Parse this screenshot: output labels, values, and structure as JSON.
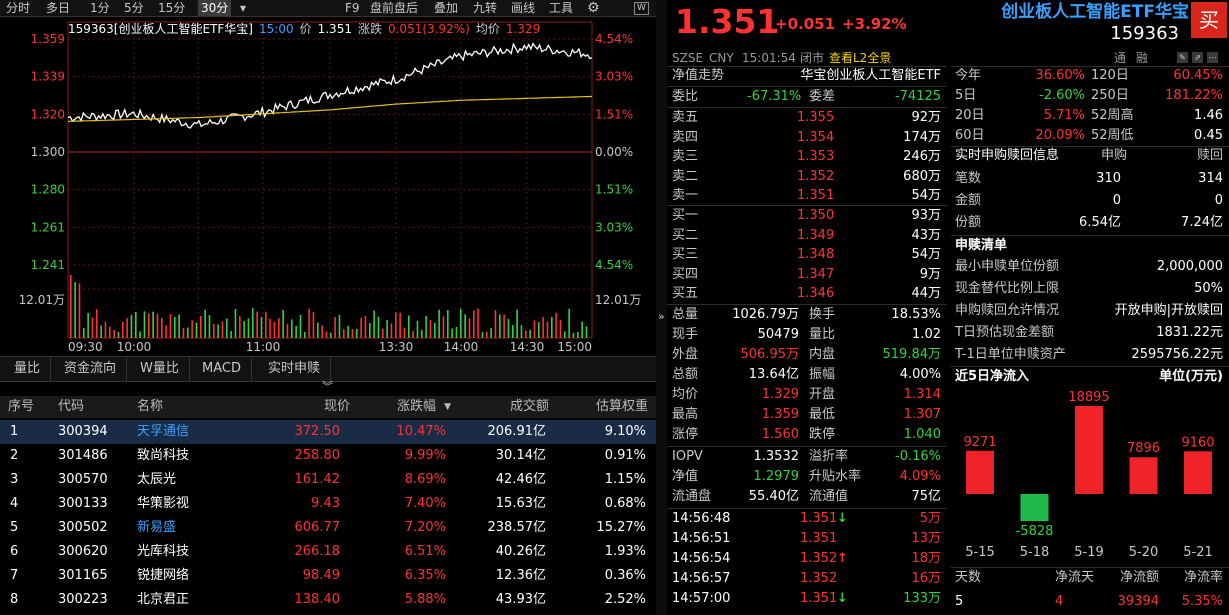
{
  "toolbar": {
    "items": [
      "分时",
      "多日",
      "1分",
      "5分",
      "15分",
      "30分",
      "▾",
      "F9",
      "盘前盘后",
      "叠加",
      "九转",
      "画线",
      "工具"
    ],
    "gear": "⚙",
    "badge": "W"
  },
  "chart": {
    "title": "159363[创业板人工智能ETF华宝]",
    "time": "15:00",
    "price_label": "价",
    "price": "1.351",
    "chg_label": "涨跌",
    "chg": "0.051(3.92%)",
    "avg_label": "均价",
    "avg": "1.329",
    "left_axis": [
      "1.359",
      "1.339",
      "1.320",
      "1.300",
      "1.280",
      "1.261",
      "1.241"
    ],
    "right_axis": [
      "4.54%",
      "3.03%",
      "1.51%",
      "0.00%",
      "1.51%",
      "3.03%",
      "4.54%"
    ],
    "vol_label": "12.01万",
    "vol_label_r": "12.01万",
    "x_labels": [
      "09:30",
      "10:00",
      "11:00",
      "13:30",
      "14:00",
      "14:30",
      "15:00"
    ],
    "chart_data": {
      "type": "line",
      "x": [
        "09:30",
        "10:00",
        "10:30",
        "11:00",
        "11:30",
        "13:30",
        "14:00",
        "14:30",
        "15:00"
      ],
      "series": [
        {
          "values": [
            1.318,
            1.32,
            1.314,
            1.321,
            1.33,
            1.338,
            1.35,
            1.355,
            1.351
          ]
        },
        {
          "values": [
            1.316,
            1.317,
            1.318,
            1.32,
            1.322,
            1.325,
            1.327,
            1.328,
            1.329
          ]
        }
      ],
      "ylim": [
        1.241,
        1.359
      ]
    }
  },
  "ind": [
    "量比",
    "资金流向",
    "W量比",
    "MACD",
    "实时申赎"
  ],
  "ind_arrow": "︾",
  "table": {
    "headers": [
      "序号",
      "代码",
      "名称",
      "现价",
      "涨跌幅",
      "成交额",
      "估算权重"
    ],
    "sort_arrow": "▼",
    "rows": [
      [
        "1",
        "300394",
        "天孚通信",
        "372.50",
        "10.47%",
        "206.91亿",
        "9.10%"
      ],
      [
        "2",
        "301486",
        "致尚科技",
        "258.80",
        "9.99%",
        "30.14亿",
        "0.91%"
      ],
      [
        "3",
        "300570",
        "太辰光",
        "161.42",
        "8.69%",
        "42.46亿",
        "1.15%"
      ],
      [
        "4",
        "300133",
        "华策影视",
        "9.43",
        "7.40%",
        "15.63亿",
        "0.68%"
      ],
      [
        "5",
        "300502",
        "新易盛",
        "606.77",
        "7.20%",
        "238.57亿",
        "15.27%"
      ],
      [
        "6",
        "300620",
        "光库科技",
        "266.18",
        "6.51%",
        "40.26亿",
        "1.93%"
      ],
      [
        "7",
        "301165",
        "锐捷网络",
        "98.49",
        "6.35%",
        "12.36亿",
        "0.36%"
      ],
      [
        "8",
        "300223",
        "北京君正",
        "138.40",
        "5.88%",
        "43.93亿",
        "2.52%"
      ]
    ]
  },
  "quote": {
    "price": "1.351",
    "chg": "+0.051",
    "pct": "+3.92%",
    "name": "创业板人工智能ETF华宝",
    "code": "159363",
    "buy": "买",
    "exchange": "SZSE",
    "currency": "CNY",
    "time": "15:01:54",
    "status": "闭市",
    "l2": "查看L2全景",
    "tong": "通",
    "rong": "融"
  },
  "nav": {
    "label": "净值走势",
    "name": "华宝创业板人工智能ETF"
  },
  "weibi": {
    "l1": "委比",
    "v1": "-67.31%",
    "l2": "委差",
    "v2": "-74125"
  },
  "sells": [
    [
      "卖五",
      "1.355",
      "92万"
    ],
    [
      "卖四",
      "1.354",
      "174万"
    ],
    [
      "卖三",
      "1.353",
      "246万"
    ],
    [
      "卖二",
      "1.352",
      "680万"
    ],
    [
      "卖一",
      "1.351",
      "54万"
    ]
  ],
  "buys": [
    [
      "买一",
      "1.350",
      "93万"
    ],
    [
      "买二",
      "1.349",
      "43万"
    ],
    [
      "买三",
      "1.348",
      "54万"
    ],
    [
      "买四",
      "1.347",
      "9万"
    ],
    [
      "买五",
      "1.346",
      "44万"
    ]
  ],
  "stats": [
    [
      "总量",
      "1026.79万",
      "换手",
      "18.53%"
    ],
    [
      "现手",
      "50479",
      "量比",
      "1.02"
    ],
    [
      "外盘",
      "506.95万",
      "内盘",
      "519.84万"
    ],
    [
      "总额",
      "13.64亿",
      "振幅",
      "4.00%"
    ],
    [
      "均价",
      "1.329",
      "开盘",
      "1.314"
    ],
    [
      "最高",
      "1.359",
      "最低",
      "1.307"
    ],
    [
      "涨停",
      "1.560",
      "跌停",
      "1.040"
    ]
  ],
  "iopv": [
    [
      "IOPV",
      "1.3532",
      "溢折率",
      "-0.16%"
    ],
    [
      "净值",
      "1.2979",
      "升贴水率",
      "4.09%"
    ],
    [
      "流通盘",
      "55.40亿",
      "流通值",
      "75亿"
    ]
  ],
  "ticks": [
    [
      "14:56:48",
      "1.351",
      "↓",
      "5万"
    ],
    [
      "14:56:51",
      "1.351",
      "",
      "13万"
    ],
    [
      "14:56:54",
      "1.352",
      "↑",
      "18万"
    ],
    [
      "14:56:57",
      "1.352",
      "",
      "16万"
    ],
    [
      "14:57:00",
      "1.351",
      "↓",
      "133万"
    ]
  ],
  "perf": [
    [
      "今年",
      "36.60%",
      "120日",
      "60.45%"
    ],
    [
      "5日",
      "-2.60%",
      "250日",
      "181.22%"
    ],
    [
      "20日",
      "5.71%",
      "52周高",
      "1.46"
    ],
    [
      "60日",
      "20.09%",
      "52周低",
      "0.45"
    ]
  ],
  "sg": {
    "title": "实时申购赎回信息",
    "h1": "申购",
    "h2": "赎回",
    "rows": [
      [
        "笔数",
        "310",
        "314"
      ],
      [
        "金额",
        "0",
        "0"
      ],
      [
        "份额",
        "6.54亿",
        "7.24亿"
      ]
    ]
  },
  "sgqd": {
    "title": "申赎清单",
    "rows": [
      [
        "最小申赎单位份额",
        "2,000,000"
      ],
      [
        "现金替代比例上限",
        "50%"
      ],
      [
        "申购赎回允许情况",
        "开放申购|开放赎回"
      ],
      [
        "T日预估现金差额",
        "1831.22元"
      ],
      [
        "T-1日单位申赎资产",
        "2595756.22元"
      ]
    ]
  },
  "flow": {
    "title": "近5日净流入",
    "unit": "单位(万元)",
    "chart_data": {
      "type": "bar",
      "categories": [
        "5-15",
        "5-18",
        "5-19",
        "5-20",
        "5-21"
      ],
      "values": [
        9271,
        -5828,
        18895,
        7896,
        9160
      ]
    },
    "footer_h": [
      "天数",
      "净流天",
      "净流额",
      "净流率"
    ],
    "footer_v": [
      "5",
      "4",
      "39394",
      "5.35%"
    ]
  }
}
